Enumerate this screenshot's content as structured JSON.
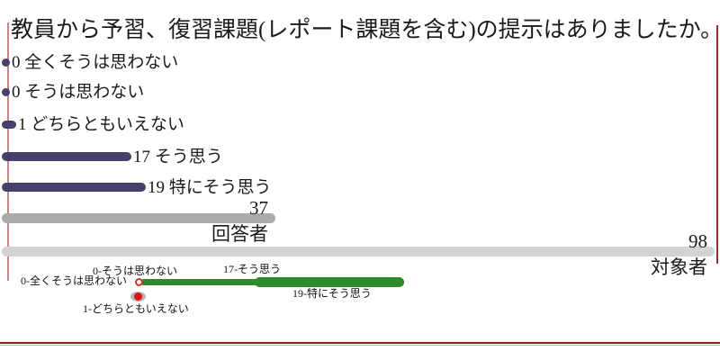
{
  "title": "教員から予習、復習課題(レポート課題を含む)の提示はありましたか。",
  "chart_data": {
    "type": "bar",
    "orientation": "horizontal",
    "title": "教員から予習、復習課題(レポート課題を含む)の提示はありましたか。",
    "categories": [
      "全くそうは思わない",
      "そうは思わない",
      "どちらともいえない",
      "そう思う",
      "特にそう思う",
      "回答者",
      "対象者"
    ],
    "values": [
      0,
      0,
      1,
      17,
      19,
      37,
      98
    ],
    "rows": [
      {
        "value": 0,
        "label": "全くそうは思わない",
        "color": "#45416b",
        "label_style": "inline"
      },
      {
        "value": 0,
        "label": "そうは思わない",
        "color": "#45416b",
        "label_style": "inline"
      },
      {
        "value": 1,
        "label": "どちらともいえない",
        "color": "#45416b",
        "label_style": "inline"
      },
      {
        "value": 17,
        "label": "そう思う",
        "color": "#45416b",
        "label_style": "inline"
      },
      {
        "value": 19,
        "label": "特にそう思う",
        "color": "#45416b",
        "label_style": "inline"
      },
      {
        "value": 37,
        "label": "回答者",
        "color": "#ababab",
        "label_style": "stacked"
      },
      {
        "value": 98,
        "label": "対象者",
        "color": "#d3d3d3",
        "label_style": "stacked"
      }
    ],
    "legend_position": "none",
    "grid": false,
    "colors": {
      "bar_navy": "#45416b",
      "bar_gray": "#ababab",
      "bar_lightgray": "#d3d3d3",
      "overlay_green": "#2e8b2c",
      "marker_red": "#df1212",
      "marker_ring_red": "#cc3a1a",
      "axis_rose": "#c2878a",
      "border_dark_red": "#8f3030",
      "rule_dark_red": "#8b2222"
    }
  },
  "overlay_labels": {
    "disagree": "0-そうは思わない",
    "strongly_disagree": "0-全くそうは思わない",
    "agree": "17-そう思う",
    "strongly_agree": "19-特にそう思う",
    "neutral": "1-どちらともいえない"
  }
}
